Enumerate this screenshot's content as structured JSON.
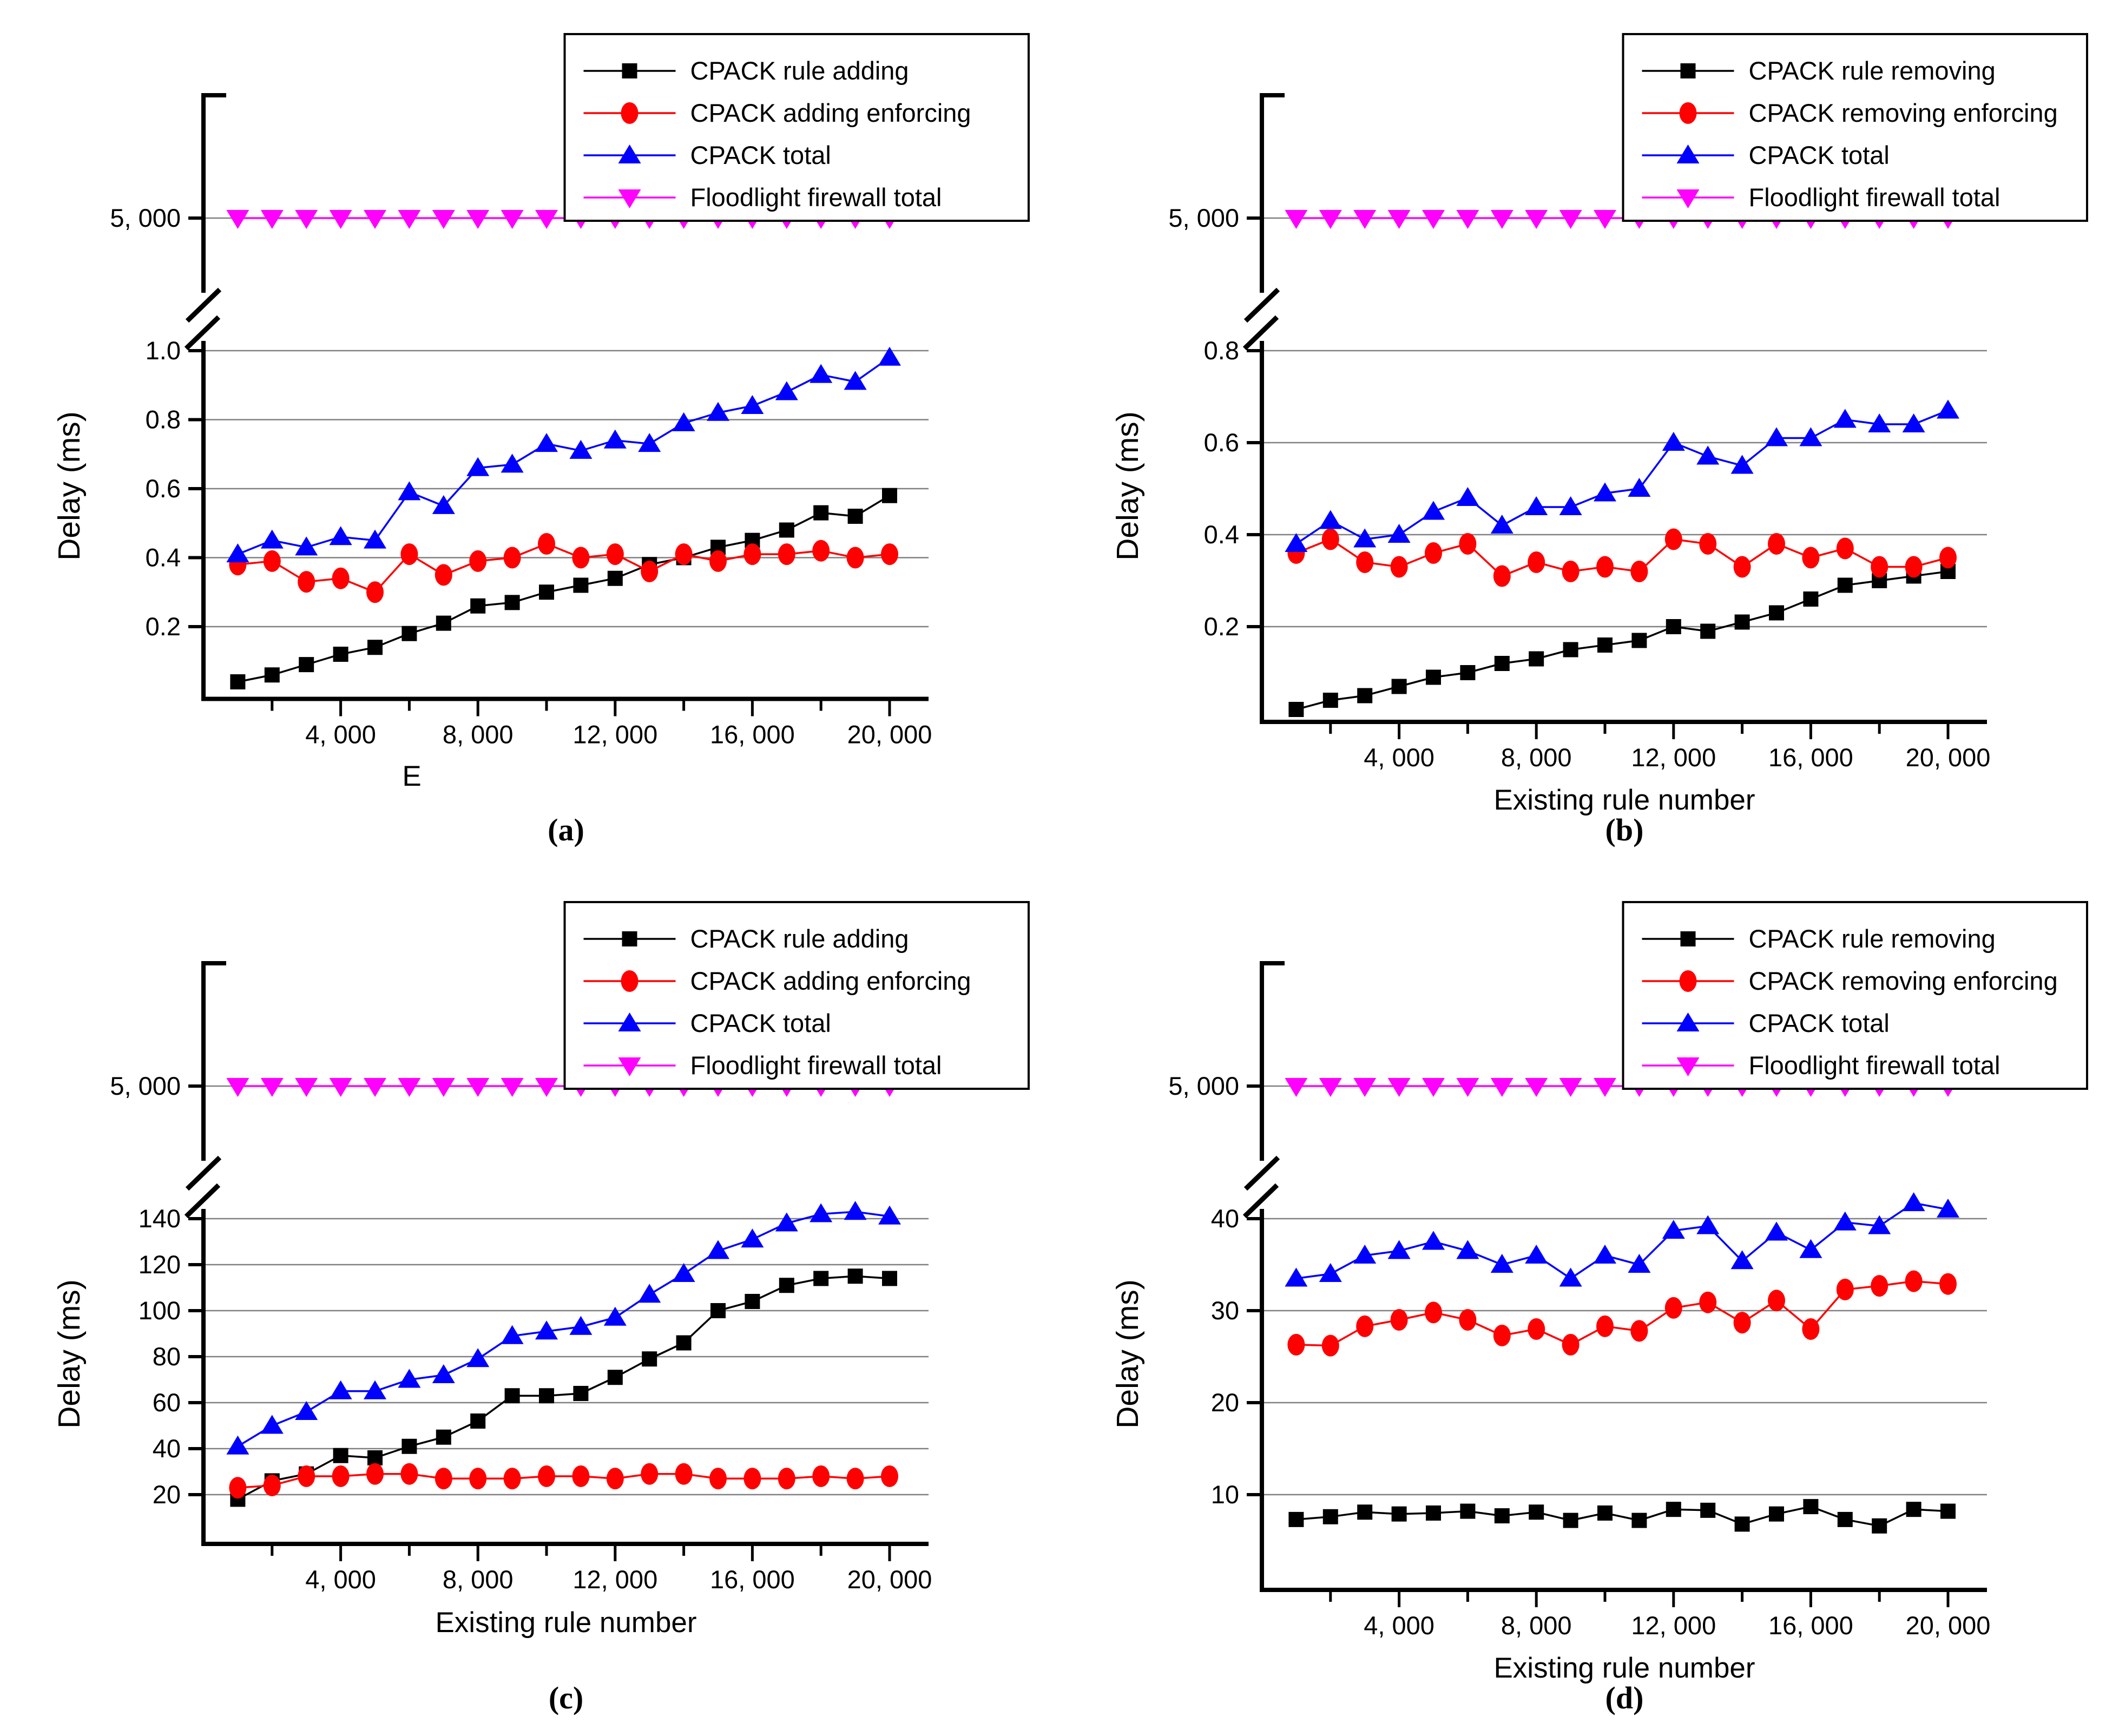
{
  "figure": {
    "background": "#ffffff",
    "grid_color": "#808080",
    "axis_color": "#000000",
    "colors": {
      "black": "#000000",
      "red": "#ff0000",
      "blue": "#0000ff",
      "magenta": "#ff00ff"
    }
  },
  "chart_data": [
    {
      "type": "line",
      "panel": "a",
      "caption": "(a)",
      "xlabel": "E",
      "ylabel": "Delay (ms)",
      "grid": true,
      "legend_position": "top-right",
      "axis_break": {
        "label": "5, 000",
        "value": 5000
      },
      "x": [
        1000,
        2000,
        3000,
        4000,
        5000,
        6000,
        7000,
        8000,
        9000,
        10000,
        11000,
        12000,
        13000,
        14000,
        15000,
        16000,
        17000,
        18000,
        19000,
        20000
      ],
      "x_ticks": [
        {
          "v": 4000,
          "label": "4, 000"
        },
        {
          "v": 8000,
          "label": "8, 000"
        },
        {
          "v": 12000,
          "label": "12, 000"
        },
        {
          "v": 16000,
          "label": "16, 000"
        },
        {
          "v": 20000,
          "label": "20, 000"
        }
      ],
      "x_minor_ticks": [
        2000,
        6000,
        10000,
        14000,
        18000
      ],
      "y_ticks": [
        {
          "v": 1.0,
          "label": "1.0"
        },
        {
          "v": 0.8,
          "label": "0.8"
        },
        {
          "v": 0.6,
          "label": "0.6"
        },
        {
          "v": 0.4,
          "label": "0.4"
        },
        {
          "v": 0.2,
          "label": "0.2"
        }
      ],
      "series": [
        {
          "name": "CPACK rule adding",
          "color": "#000000",
          "marker": "square",
          "values": [
            0.04,
            0.06,
            0.09,
            0.12,
            0.14,
            0.18,
            0.21,
            0.26,
            0.27,
            0.3,
            0.32,
            0.34,
            0.38,
            0.4,
            0.43,
            0.45,
            0.48,
            0.53,
            0.52,
            0.58
          ]
        },
        {
          "name": "CPACK adding enforcing",
          "color": "#ff0000",
          "marker": "circle",
          "values": [
            0.38,
            0.39,
            0.33,
            0.34,
            0.3,
            0.41,
            0.35,
            0.39,
            0.4,
            0.44,
            0.4,
            0.41,
            0.36,
            0.41,
            0.39,
            0.41,
            0.41,
            0.42,
            0.4,
            0.41
          ]
        },
        {
          "name": "CPACK total",
          "color": "#0000ff",
          "marker": "triangle-up",
          "values": [
            0.41,
            0.45,
            0.43,
            0.46,
            0.45,
            0.59,
            0.55,
            0.66,
            0.67,
            0.73,
            0.71,
            0.74,
            0.73,
            0.79,
            0.82,
            0.84,
            0.88,
            0.93,
            0.91,
            0.98
          ]
        },
        {
          "name": "Floodlight firewall total",
          "color": "#ff00ff",
          "marker": "triangle-down",
          "values": [
            5000,
            5000,
            5000,
            5000,
            5000,
            5000,
            5000,
            5000,
            5000,
            5000,
            5000,
            5000,
            5000,
            5000,
            5000,
            5000,
            5000,
            5000,
            5000,
            5000
          ]
        }
      ]
    },
    {
      "type": "line",
      "panel": "b",
      "caption": "(b)",
      "xlabel": "Existing rule number",
      "ylabel": "Delay (ms)",
      "grid": true,
      "legend_position": "top-right",
      "axis_break": {
        "label": "5, 000",
        "value": 5000
      },
      "x": [
        1000,
        2000,
        3000,
        4000,
        5000,
        6000,
        7000,
        8000,
        9000,
        10000,
        11000,
        12000,
        13000,
        14000,
        15000,
        16000,
        17000,
        18000,
        19000,
        20000
      ],
      "x_ticks": [
        {
          "v": 4000,
          "label": "4, 000"
        },
        {
          "v": 8000,
          "label": "8, 000"
        },
        {
          "v": 12000,
          "label": "12, 000"
        },
        {
          "v": 16000,
          "label": "16, 000"
        },
        {
          "v": 20000,
          "label": "20, 000"
        }
      ],
      "x_minor_ticks": [
        2000,
        6000,
        10000,
        14000,
        18000
      ],
      "y_ticks": [
        {
          "v": 0.8,
          "label": "0.8"
        },
        {
          "v": 0.6,
          "label": "0.6"
        },
        {
          "v": 0.4,
          "label": "0.4"
        },
        {
          "v": 0.2,
          "label": "0.2"
        }
      ],
      "series": [
        {
          "name": "CPACK rule removing",
          "color": "#000000",
          "marker": "square",
          "values": [
            0.02,
            0.04,
            0.05,
            0.07,
            0.09,
            0.1,
            0.12,
            0.13,
            0.15,
            0.16,
            0.17,
            0.2,
            0.19,
            0.21,
            0.23,
            0.26,
            0.29,
            0.3,
            0.31,
            0.32
          ]
        },
        {
          "name": "CPACK removing enforcing",
          "color": "#ff0000",
          "marker": "circle",
          "values": [
            0.36,
            0.39,
            0.34,
            0.33,
            0.36,
            0.38,
            0.31,
            0.34,
            0.32,
            0.33,
            0.32,
            0.39,
            0.38,
            0.33,
            0.38,
            0.35,
            0.37,
            0.33,
            0.33,
            0.35
          ]
        },
        {
          "name": "CPACK total",
          "color": "#0000ff",
          "marker": "triangle-up",
          "values": [
            0.38,
            0.43,
            0.39,
            0.4,
            0.45,
            0.48,
            0.42,
            0.46,
            0.46,
            0.49,
            0.5,
            0.6,
            0.57,
            0.55,
            0.61,
            0.61,
            0.65,
            0.64,
            0.64,
            0.67
          ]
        },
        {
          "name": "Floodlight firewall total",
          "color": "#ff00ff",
          "marker": "triangle-down",
          "values": [
            5000,
            5000,
            5000,
            5000,
            5000,
            5000,
            5000,
            5000,
            5000,
            5000,
            5000,
            5000,
            5000,
            5000,
            5000,
            5000,
            5000,
            5000,
            5000,
            5000
          ]
        }
      ]
    },
    {
      "type": "line",
      "panel": "c",
      "caption": "(c)",
      "xlabel": "Existing rule number",
      "ylabel": "Delay (ms)",
      "grid": true,
      "legend_position": "top-right",
      "axis_break": {
        "label": "5, 000",
        "value": 5000
      },
      "x": [
        1000,
        2000,
        3000,
        4000,
        5000,
        6000,
        7000,
        8000,
        9000,
        10000,
        11000,
        12000,
        13000,
        14000,
        15000,
        16000,
        17000,
        18000,
        19000,
        20000
      ],
      "x_ticks": [
        {
          "v": 4000,
          "label": "4, 000"
        },
        {
          "v": 8000,
          "label": "8, 000"
        },
        {
          "v": 12000,
          "label": "12, 000"
        },
        {
          "v": 16000,
          "label": "16, 000"
        },
        {
          "v": 20000,
          "label": "20, 000"
        }
      ],
      "x_minor_ticks": [
        2000,
        6000,
        10000,
        14000,
        18000
      ],
      "y_ticks": [
        {
          "v": 140,
          "label": "140"
        },
        {
          "v": 120,
          "label": "120"
        },
        {
          "v": 100,
          "label": "100"
        },
        {
          "v": 80,
          "label": "80"
        },
        {
          "v": 60,
          "label": "60"
        },
        {
          "v": 40,
          "label": "40"
        },
        {
          "v": 20,
          "label": "20"
        }
      ],
      "series": [
        {
          "name": "CPACK rule adding",
          "color": "#000000",
          "marker": "square",
          "values": [
            18,
            26,
            29,
            37,
            36,
            41,
            45,
            52,
            63,
            63,
            64,
            71,
            79,
            86,
            100,
            104,
            111,
            114,
            115,
            114
          ]
        },
        {
          "name": "CPACK adding enforcing",
          "color": "#ff0000",
          "marker": "circle",
          "values": [
            23,
            24,
            28,
            28,
            29,
            29,
            27,
            27,
            27,
            28,
            28,
            27,
            29,
            29,
            27,
            27,
            27,
            28,
            27,
            28
          ]
        },
        {
          "name": "CPACK total",
          "color": "#0000ff",
          "marker": "triangle-up",
          "values": [
            41,
            50,
            56,
            65,
            65,
            70,
            72,
            79,
            89,
            91,
            93,
            97,
            107,
            116,
            126,
            131,
            138,
            142,
            143,
            141
          ]
        },
        {
          "name": "Floodlight firewall total",
          "color": "#ff00ff",
          "marker": "triangle-down",
          "values": [
            5000,
            5000,
            5000,
            5000,
            5000,
            5000,
            5000,
            5000,
            5000,
            5000,
            5000,
            5000,
            5000,
            5000,
            5000,
            5000,
            5000,
            5000,
            5000,
            5000
          ]
        }
      ]
    },
    {
      "type": "line",
      "panel": "d",
      "caption": "(d)",
      "xlabel": "Existing rule number",
      "ylabel": "Delay (ms)",
      "grid": true,
      "legend_position": "top-right",
      "axis_break": {
        "label": "5, 000",
        "value": 5000
      },
      "x": [
        1000,
        2000,
        3000,
        4000,
        5000,
        6000,
        7000,
        8000,
        9000,
        10000,
        11000,
        12000,
        13000,
        14000,
        15000,
        16000,
        17000,
        18000,
        19000,
        20000
      ],
      "x_ticks": [
        {
          "v": 4000,
          "label": "4, 000"
        },
        {
          "v": 8000,
          "label": "8, 000"
        },
        {
          "v": 12000,
          "label": "12, 000"
        },
        {
          "v": 16000,
          "label": "16, 000"
        },
        {
          "v": 20000,
          "label": "20, 000"
        }
      ],
      "x_minor_ticks": [
        2000,
        6000,
        10000,
        14000,
        18000
      ],
      "y_ticks": [
        {
          "v": 40,
          "label": "40"
        },
        {
          "v": 30,
          "label": "30"
        },
        {
          "v": 20,
          "label": "20"
        },
        {
          "v": 10,
          "label": "10"
        }
      ],
      "series": [
        {
          "name": "CPACK rule removing",
          "color": "#000000",
          "marker": "square",
          "values": [
            7.3,
            7.6,
            8.1,
            7.9,
            8.0,
            8.2,
            7.7,
            8.1,
            7.2,
            8.0,
            7.2,
            8.4,
            8.3,
            6.8,
            7.9,
            8.7,
            7.3,
            6.6,
            8.4,
            8.2
          ]
        },
        {
          "name": "CPACK removing enforcing",
          "color": "#ff0000",
          "marker": "circle",
          "values": [
            26.3,
            26.2,
            28.3,
            29.0,
            29.8,
            29.0,
            27.3,
            28.0,
            26.3,
            28.3,
            27.8,
            30.3,
            30.9,
            28.7,
            31.1,
            28.0,
            32.3,
            32.7,
            33.2,
            32.9
          ]
        },
        {
          "name": "CPACK total",
          "color": "#0000ff",
          "marker": "triangle-up",
          "values": [
            33.5,
            34.0,
            36.0,
            36.5,
            37.5,
            36.5,
            35.0,
            36.0,
            33.5,
            36.0,
            35.0,
            38.7,
            39.2,
            35.4,
            38.5,
            36.6,
            39.6,
            39.2,
            41.7,
            41.0
          ]
        },
        {
          "name": "Floodlight firewall total",
          "color": "#ff00ff",
          "marker": "triangle-down",
          "values": [
            5000,
            5000,
            5000,
            5000,
            5000,
            5000,
            5000,
            5000,
            5000,
            5000,
            5000,
            5000,
            5000,
            5000,
            5000,
            5000,
            5000,
            5000,
            5000,
            5000
          ]
        }
      ]
    }
  ]
}
